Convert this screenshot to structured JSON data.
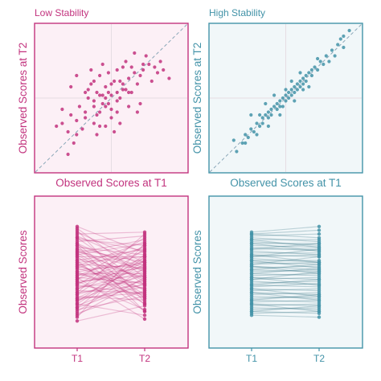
{
  "colors": {
    "low": "#c2337e",
    "low_bg": "#fcf0f6",
    "high": "#4393a8",
    "high_bg": "#f1f7f9",
    "high_line": "#2f6f83",
    "diagonal": "#8aa7b8",
    "crosshair": "#e6dde3"
  },
  "chart_data": [
    {
      "type": "scatter",
      "panel": "low-stability-scatter",
      "title": "Low Stability",
      "xlabel": "Observed Scores at T1",
      "ylabel": "Observed Scores at T2",
      "xlim": [
        -2.6,
        2.6
      ],
      "ylim": [
        -2.6,
        2.6
      ],
      "reference_line": "y = x",
      "points": [
        [
          -1.7,
          -0.9
        ],
        [
          -1.5,
          -1.2
        ],
        [
          -1.4,
          -0.6
        ],
        [
          -1.2,
          -0.8
        ],
        [
          -1.2,
          -1.3
        ],
        [
          -1.0,
          -1.1
        ],
        [
          -1.3,
          -1.6
        ],
        [
          -1.5,
          -2.0
        ],
        [
          -0.9,
          -0.5
        ],
        [
          -0.8,
          0.0
        ],
        [
          -0.7,
          0.5
        ],
        [
          -0.6,
          -0.3
        ],
        [
          -0.6,
          -0.9
        ],
        [
          -0.5,
          0.2
        ],
        [
          -0.4,
          -0.5
        ],
        [
          -0.4,
          -1.0
        ],
        [
          -0.3,
          0.1
        ],
        [
          -0.2,
          0.4
        ],
        [
          -0.1,
          -0.2
        ],
        [
          0.0,
          0.1
        ],
        [
          0.0,
          -0.7
        ],
        [
          0.1,
          0.6
        ],
        [
          0.2,
          -0.1
        ],
        [
          0.2,
          0.2
        ],
        [
          0.3,
          0.0
        ],
        [
          0.4,
          0.5
        ],
        [
          0.5,
          0.3
        ],
        [
          0.6,
          -0.3
        ],
        [
          0.7,
          0.2
        ],
        [
          0.9,
          0.5
        ],
        [
          1.0,
          0.8
        ],
        [
          1.1,
          1.0
        ],
        [
          1.3,
          1.2
        ],
        [
          1.4,
          0.6
        ],
        [
          1.6,
          0.9
        ],
        [
          1.8,
          1.0
        ],
        [
          2.0,
          0.7
        ],
        [
          1.2,
          1.5
        ],
        [
          0.8,
          1.6
        ],
        [
          -0.4,
          0.8
        ],
        [
          -0.7,
          1.0
        ],
        [
          0.4,
          1.1
        ],
        [
          -0.9,
          0.2
        ],
        [
          -1.1,
          -0.3
        ],
        [
          0.6,
          0.7
        ],
        [
          -0.2,
          -1.0
        ],
        [
          0.9,
          -0.5
        ],
        [
          -1.9,
          -1.0
        ],
        [
          -0.1,
          0.9
        ],
        [
          0.3,
          -0.9
        ],
        [
          1.7,
          1.3
        ],
        [
          -1.4,
          0.4
        ],
        [
          1.0,
          -0.2
        ],
        [
          -0.5,
          -1.3
        ],
        [
          0.1,
          -1.2
        ],
        [
          0.7,
          1.1
        ],
        [
          -1.7,
          -0.4
        ],
        [
          0.5,
          1.3
        ],
        [
          -0.6,
          -0.1
        ],
        [
          -0.3,
          1.2
        ],
        [
          -1.2,
          0.8
        ],
        [
          0.2,
          1.0
        ],
        [
          0.4,
          0.3
        ],
        [
          0.0,
          0.5
        ],
        [
          -0.6,
          0.6
        ],
        [
          -0.2,
          -0.3
        ],
        [
          -0.9,
          -0.7
        ],
        [
          1.1,
          1.2
        ],
        [
          0.8,
          0.9
        ],
        [
          -0.1,
          0.2
        ],
        [
          0.0,
          -0.4
        ],
        [
          -0.8,
          0.3
        ],
        [
          -0.4,
          0.1
        ],
        [
          0.3,
          0.6
        ],
        [
          1.5,
          1.1
        ],
        [
          0.6,
          0.2
        ],
        [
          -0.5,
          -0.6
        ],
        [
          -0.2,
          0.0
        ],
        [
          0.2,
          -0.5
        ],
        [
          -0.3,
          -0.2
        ]
      ]
    },
    {
      "type": "scatter",
      "panel": "high-stability-scatter",
      "title": "High Stability",
      "xlabel": "Observed Scores at T1",
      "ylabel": "Observed Scores at T2",
      "xlim": [
        -2.6,
        2.6
      ],
      "ylim": [
        -2.6,
        2.6
      ],
      "reference_line": "y = x",
      "points": [
        [
          -1.7,
          -1.9
        ],
        [
          -1.5,
          -1.6
        ],
        [
          -1.4,
          -1.3
        ],
        [
          -1.3,
          -1.4
        ],
        [
          -1.2,
          -1.1
        ],
        [
          -1.1,
          -1.2
        ],
        [
          -1.0,
          -0.9
        ],
        [
          -0.9,
          -1.0
        ],
        [
          -0.8,
          -0.7
        ],
        [
          -0.8,
          -0.9
        ],
        [
          -0.7,
          -0.6
        ],
        [
          -0.6,
          -0.7
        ],
        [
          -0.6,
          -0.5
        ],
        [
          -0.5,
          -0.4
        ],
        [
          -0.5,
          -0.6
        ],
        [
          -0.4,
          -0.3
        ],
        [
          -0.3,
          -0.4
        ],
        [
          -0.3,
          -0.2
        ],
        [
          -0.2,
          -0.1
        ],
        [
          -0.2,
          -0.3
        ],
        [
          -0.1,
          0.0
        ],
        [
          0.0,
          -0.1
        ],
        [
          0.0,
          0.1
        ],
        [
          0.1,
          0.2
        ],
        [
          0.1,
          0.0
        ],
        [
          0.2,
          0.1
        ],
        [
          0.2,
          0.3
        ],
        [
          0.3,
          0.4
        ],
        [
          0.3,
          0.2
        ],
        [
          0.4,
          0.5
        ],
        [
          0.4,
          0.3
        ],
        [
          0.5,
          0.4
        ],
        [
          0.5,
          0.6
        ],
        [
          0.6,
          0.5
        ],
        [
          0.6,
          0.7
        ],
        [
          0.7,
          0.8
        ],
        [
          0.7,
          0.6
        ],
        [
          0.8,
          0.9
        ],
        [
          0.9,
          0.8
        ],
        [
          0.9,
          1.0
        ],
        [
          1.0,
          1.1
        ],
        [
          1.1,
          1.0
        ],
        [
          1.2,
          1.3
        ],
        [
          1.3,
          1.2
        ],
        [
          1.4,
          1.5
        ],
        [
          1.6,
          1.7
        ],
        [
          1.8,
          1.9
        ],
        [
          2.0,
          2.2
        ],
        [
          2.2,
          2.4
        ],
        [
          2.0,
          1.8
        ],
        [
          1.7,
          1.5
        ],
        [
          -1.2,
          -0.6
        ],
        [
          -0.7,
          -0.2
        ],
        [
          -1.8,
          -1.5
        ],
        [
          -1.4,
          -1.6
        ],
        [
          -1.0,
          -1.3
        ],
        [
          -0.4,
          0.1
        ],
        [
          0.2,
          0.6
        ],
        [
          0.8,
          0.4
        ],
        [
          1.5,
          1.3
        ],
        [
          -0.2,
          -0.6
        ],
        [
          0.5,
          0.9
        ],
        [
          -0.9,
          -0.6
        ],
        [
          1.1,
          1.4
        ],
        [
          0.0,
          0.3
        ],
        [
          -0.6,
          -1.0
        ],
        [
          0.3,
          -0.1
        ],
        [
          1.9,
          2.1
        ],
        [
          -0.1,
          -0.3
        ],
        [
          0.6,
          0.3
        ]
      ]
    },
    {
      "type": "line",
      "panel": "low-stability-slopes",
      "categories": [
        "T1",
        "T2"
      ],
      "xlabel": "",
      "ylabel": "Observed Scores",
      "ylim": [
        -3.0,
        3.0
      ],
      "pairs": [
        [
          2.5,
          1.1
        ],
        [
          2.3,
          -1.5
        ],
        [
          2.1,
          2.2
        ],
        [
          2.0,
          0.4
        ],
        [
          1.9,
          -0.6
        ],
        [
          1.8,
          1.5
        ],
        [
          1.7,
          2.0
        ],
        [
          1.6,
          0.1
        ],
        [
          1.5,
          -2.0
        ],
        [
          1.4,
          1.0
        ],
        [
          1.3,
          0.6
        ],
        [
          1.2,
          -0.3
        ],
        [
          1.1,
          1.8
        ],
        [
          1.0,
          -1.1
        ],
        [
          0.9,
          0.9
        ],
        [
          0.8,
          -0.2
        ],
        [
          0.7,
          1.3
        ],
        [
          0.6,
          -1.6
        ],
        [
          0.5,
          0.3
        ],
        [
          0.4,
          1.7
        ],
        [
          0.3,
          -0.8
        ],
        [
          0.2,
          0.5
        ],
        [
          0.1,
          -1.3
        ],
        [
          0.0,
          0.0
        ],
        [
          -0.1,
          1.2
        ],
        [
          -0.2,
          -0.5
        ],
        [
          -0.3,
          0.8
        ],
        [
          -0.4,
          -1.9
        ],
        [
          -0.5,
          0.2
        ],
        [
          -0.6,
          1.5
        ],
        [
          -0.7,
          -0.4
        ],
        [
          -0.8,
          0.7
        ],
        [
          -0.9,
          -1.0
        ],
        [
          -1.0,
          2.1
        ],
        [
          -1.1,
          -0.1
        ],
        [
          -1.2,
          -1.4
        ],
        [
          -1.3,
          0.5
        ],
        [
          -1.4,
          -0.7
        ],
        [
          -1.5,
          1.0
        ],
        [
          -1.6,
          -2.2
        ],
        [
          -1.7,
          -0.3
        ],
        [
          -1.8,
          0.9
        ],
        [
          -1.9,
          -1.2
        ],
        [
          -2.0,
          0.3
        ],
        [
          -2.1,
          -0.9
        ],
        [
          -2.3,
          1.6
        ],
        [
          -2.5,
          -1.7
        ],
        [
          0.3,
          1.4
        ],
        [
          -0.2,
          -2.4
        ],
        [
          1.1,
          -0.9
        ],
        [
          -0.8,
          0.1
        ],
        [
          1.6,
          -1.3
        ],
        [
          0.6,
          0.9
        ],
        [
          -1.4,
          0.0
        ],
        [
          2.2,
          0.6
        ],
        [
          -0.4,
          -0.1
        ],
        [
          0.9,
          -1.6
        ],
        [
          -1.1,
          1.3
        ],
        [
          0.1,
          0.6
        ],
        [
          -0.6,
          -1.1
        ],
        [
          1.3,
          -0.4
        ],
        [
          -1.8,
          -0.5
        ],
        [
          0.4,
          -0.6
        ],
        [
          -0.1,
          0.3
        ],
        [
          1.9,
          1.2
        ],
        [
          -1.6,
          0.7
        ],
        [
          0.7,
          -2.0
        ],
        [
          -0.3,
          1.9
        ],
        [
          1.5,
          0.3
        ],
        [
          -2.2,
          -0.2
        ],
        [
          0.0,
          -0.8
        ],
        [
          1.0,
          1.6
        ],
        [
          -1.0,
          -0.6
        ],
        [
          0.5,
          -1.2
        ],
        [
          -0.5,
          0.4
        ],
        [
          1.2,
          0.2
        ],
        [
          -1.3,
          -1.0
        ],
        [
          2.4,
          -0.2
        ]
      ]
    },
    {
      "type": "line",
      "panel": "high-stability-slopes",
      "categories": [
        "T1",
        "T2"
      ],
      "xlabel": "",
      "ylabel": "Observed Scores",
      "ylim": [
        -3.0,
        3.0
      ],
      "pairs": [
        [
          2.2,
          2.5
        ],
        [
          2.1,
          1.9
        ],
        [
          2.0,
          2.1
        ],
        [
          1.9,
          1.7
        ],
        [
          1.8,
          1.8
        ],
        [
          1.7,
          1.5
        ],
        [
          1.6,
          1.6
        ],
        [
          1.5,
          1.4
        ],
        [
          1.4,
          1.2
        ],
        [
          1.3,
          1.3
        ],
        [
          1.2,
          1.0
        ],
        [
          1.1,
          1.1
        ],
        [
          1.0,
          0.9
        ],
        [
          0.9,
          1.0
        ],
        [
          0.8,
          0.6
        ],
        [
          0.7,
          0.7
        ],
        [
          0.6,
          0.5
        ],
        [
          0.5,
          0.6
        ],
        [
          0.4,
          0.2
        ],
        [
          0.3,
          0.4
        ],
        [
          0.2,
          0.1
        ],
        [
          0.1,
          0.2
        ],
        [
          0.0,
          -0.1
        ],
        [
          -0.1,
          0.0
        ],
        [
          -0.2,
          -0.3
        ],
        [
          -0.3,
          -0.2
        ],
        [
          -0.4,
          -0.6
        ],
        [
          -0.5,
          -0.4
        ],
        [
          -0.6,
          -0.7
        ],
        [
          -0.7,
          -0.5
        ],
        [
          -0.8,
          -0.9
        ],
        [
          -0.9,
          -0.8
        ],
        [
          -1.0,
          -1.1
        ],
        [
          -1.1,
          -1.0
        ],
        [
          -1.2,
          -1.3
        ],
        [
          -1.3,
          -1.2
        ],
        [
          -1.4,
          -1.5
        ],
        [
          -1.5,
          -1.4
        ],
        [
          -1.6,
          -1.7
        ],
        [
          -1.7,
          -1.6
        ],
        [
          -1.8,
          -1.9
        ],
        [
          -1.9,
          -1.8
        ],
        [
          -2.0,
          -2.1
        ],
        [
          -2.1,
          -2.0
        ],
        [
          -2.2,
          -2.3
        ],
        [
          1.6,
          1.2
        ],
        [
          0.9,
          1.3
        ],
        [
          -0.3,
          0.1
        ],
        [
          0.4,
          0.0
        ],
        [
          -1.0,
          -1.4
        ],
        [
          1.3,
          1.6
        ],
        [
          -0.6,
          -0.3
        ],
        [
          0.2,
          0.5
        ],
        [
          -1.6,
          -2.0
        ],
        [
          2.1,
          2.3
        ],
        [
          -0.8,
          -1.2
        ],
        [
          0.7,
          0.3
        ],
        [
          -1.4,
          -1.1
        ],
        [
          0.0,
          0.3
        ],
        [
          1.0,
          0.6
        ],
        [
          -2.0,
          -1.7
        ],
        [
          0.5,
          0.9
        ],
        [
          -0.2,
          -0.6
        ],
        [
          1.8,
          1.4
        ]
      ]
    }
  ]
}
